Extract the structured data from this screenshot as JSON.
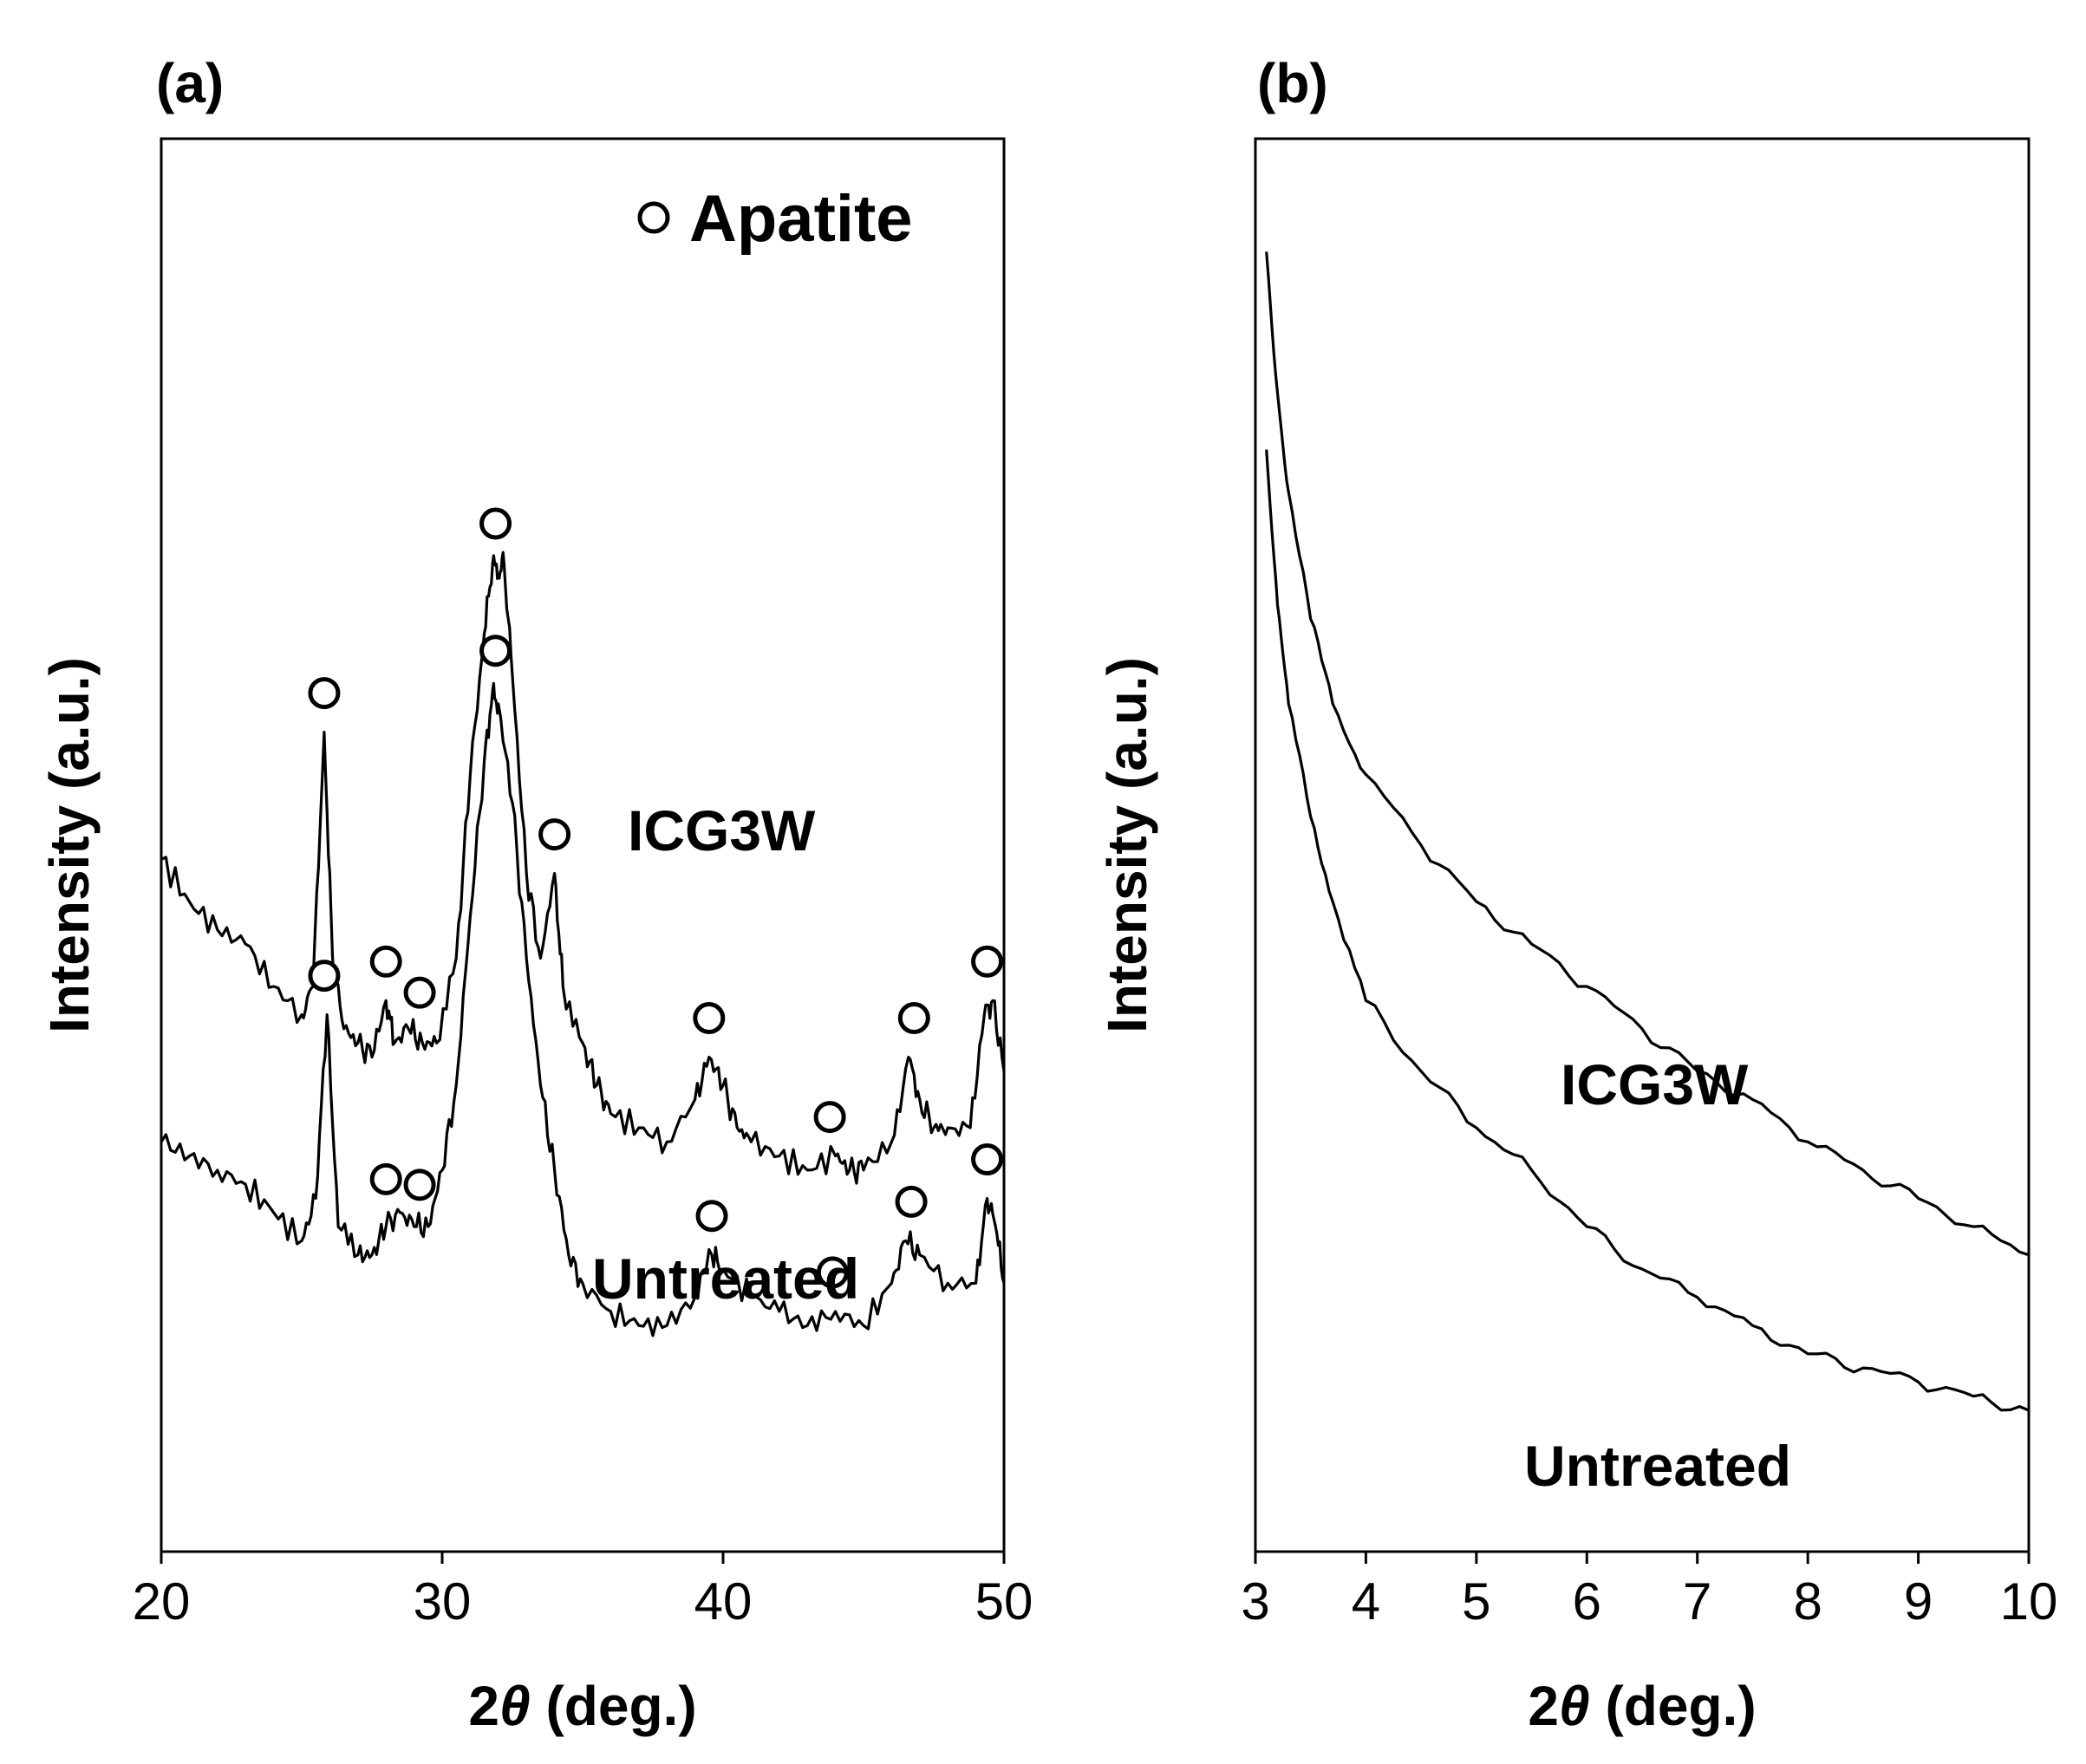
{
  "chart_data": [
    {
      "panel": "(a)",
      "type": "line",
      "xlabel_main": "2",
      "xlabel_theta": "θ",
      "xlabel_rest": " (deg.)",
      "ylabel": "Intensity (a.u.)",
      "xlim": [
        20,
        50
      ],
      "xticks": [
        "20",
        "30",
        "40",
        "50"
      ],
      "legend": {
        "symbol": "open-circle",
        "label": "Apatite",
        "position": "top-right"
      },
      "series": [
        {
          "name": "ICG3W",
          "points": [
            [
              20,
              0.49
            ],
            [
              21,
              0.46
            ],
            [
              22,
              0.44
            ],
            [
              23,
              0.43
            ],
            [
              24,
              0.4
            ],
            [
              25,
              0.38
            ],
            [
              25.4,
              0.4
            ],
            [
              25.8,
              0.58
            ],
            [
              26.1,
              0.42
            ],
            [
              26.5,
              0.37
            ],
            [
              27,
              0.36
            ],
            [
              27.5,
              0.35
            ],
            [
              28.0,
              0.39
            ],
            [
              28.3,
              0.36
            ],
            [
              28.8,
              0.37
            ],
            [
              29.3,
              0.36
            ],
            [
              29.8,
              0.36
            ],
            [
              30.5,
              0.42
            ],
            [
              31.0,
              0.55
            ],
            [
              31.5,
              0.65
            ],
            [
              31.8,
              0.7
            ],
            [
              32.0,
              0.69
            ],
            [
              32.2,
              0.7
            ],
            [
              32.5,
              0.62
            ],
            [
              33.0,
              0.48
            ],
            [
              33.5,
              0.42
            ],
            [
              34.0,
              0.48
            ],
            [
              34.3,
              0.4
            ],
            [
              35,
              0.36
            ],
            [
              35.5,
              0.33
            ],
            [
              36,
              0.31
            ],
            [
              37,
              0.3
            ],
            [
              38,
              0.29
            ],
            [
              39,
              0.32
            ],
            [
              39.5,
              0.35
            ],
            [
              40,
              0.33
            ],
            [
              40.5,
              0.3
            ],
            [
              41,
              0.29
            ],
            [
              42,
              0.28
            ],
            [
              43,
              0.27
            ],
            [
              44,
              0.28
            ],
            [
              44.5,
              0.27
            ],
            [
              45,
              0.27
            ],
            [
              46,
              0.29
            ],
            [
              46.6,
              0.35
            ],
            [
              47,
              0.32
            ],
            [
              47.5,
              0.3
            ],
            [
              48,
              0.3
            ],
            [
              48.8,
              0.3
            ],
            [
              49.3,
              0.38
            ],
            [
              49.6,
              0.39
            ],
            [
              50,
              0.34
            ]
          ],
          "markers_x": [
            25.8,
            28.0,
            29.2,
            31.9,
            34.0,
            39.5,
            43.8,
            46.8,
            49.4
          ]
        },
        {
          "name": "Untreated",
          "points": [
            [
              20,
              0.29
            ],
            [
              21,
              0.28
            ],
            [
              22,
              0.27
            ],
            [
              23,
              0.26
            ],
            [
              24,
              0.24
            ],
            [
              25,
              0.22
            ],
            [
              25.5,
              0.25
            ],
            [
              25.9,
              0.38
            ],
            [
              26.3,
              0.23
            ],
            [
              27,
              0.21
            ],
            [
              27.5,
              0.21
            ],
            [
              28,
              0.23
            ],
            [
              28.5,
              0.24
            ],
            [
              29,
              0.23
            ],
            [
              29.5,
              0.23
            ],
            [
              30,
              0.27
            ],
            [
              30.5,
              0.33
            ],
            [
              31.0,
              0.45
            ],
            [
              31.5,
              0.56
            ],
            [
              31.8,
              0.61
            ],
            [
              32.0,
              0.6
            ],
            [
              32.5,
              0.53
            ],
            [
              33.0,
              0.42
            ],
            [
              33.5,
              0.33
            ],
            [
              34,
              0.27
            ],
            [
              34.5,
              0.21
            ],
            [
              35,
              0.19
            ],
            [
              36,
              0.17
            ],
            [
              37,
              0.16
            ],
            [
              38,
              0.16
            ],
            [
              39,
              0.18
            ],
            [
              39.6,
              0.21
            ],
            [
              40,
              0.2
            ],
            [
              41,
              0.18
            ],
            [
              42,
              0.17
            ],
            [
              43,
              0.16
            ],
            [
              44,
              0.17
            ],
            [
              45,
              0.16
            ],
            [
              46,
              0.19
            ],
            [
              46.5,
              0.22
            ],
            [
              47,
              0.21
            ],
            [
              48,
              0.19
            ],
            [
              49,
              0.19
            ],
            [
              49.4,
              0.25
            ],
            [
              49.7,
              0.23
            ],
            [
              50,
              0.19
            ]
          ],
          "markers_x": [
            25.8,
            28.0,
            29.2,
            31.9,
            39.6,
            43.9,
            46.7,
            49.4
          ]
        }
      ]
    },
    {
      "panel": "(b)",
      "type": "line",
      "xlabel_main": "2",
      "xlabel_theta": "θ",
      "xlabel_rest": " (deg.)",
      "ylabel": "Intensity (a.u.)",
      "xlim": [
        3,
        10
      ],
      "xticks": [
        "3",
        "4",
        "5",
        "6",
        "7",
        "8",
        "9",
        "10"
      ],
      "series": [
        {
          "name": "ICG3W",
          "points": [
            [
              3.1,
              0.92
            ],
            [
              3.2,
              0.82
            ],
            [
              3.3,
              0.75
            ],
            [
              3.5,
              0.66
            ],
            [
              3.7,
              0.6
            ],
            [
              4.0,
              0.55
            ],
            [
              4.5,
              0.5
            ],
            [
              5.0,
              0.46
            ],
            [
              5.5,
              0.43
            ],
            [
              6.0,
              0.4
            ],
            [
              6.5,
              0.37
            ],
            [
              7.0,
              0.34
            ],
            [
              7.5,
              0.32
            ],
            [
              8.0,
              0.29
            ],
            [
              8.5,
              0.27
            ],
            [
              9.0,
              0.25
            ],
            [
              9.5,
              0.23
            ],
            [
              10.0,
              0.21
            ]
          ]
        },
        {
          "name": "Untreated",
          "points": [
            [
              3.1,
              0.78
            ],
            [
              3.2,
              0.67
            ],
            [
              3.3,
              0.6
            ],
            [
              3.5,
              0.52
            ],
            [
              3.7,
              0.46
            ],
            [
              4.0,
              0.39
            ],
            [
              4.5,
              0.34
            ],
            [
              5.0,
              0.3
            ],
            [
              5.5,
              0.27
            ],
            [
              6.0,
              0.23
            ],
            [
              6.5,
              0.2
            ],
            [
              7.0,
              0.18
            ],
            [
              7.5,
              0.16
            ],
            [
              8.0,
              0.14
            ],
            [
              8.5,
              0.13
            ],
            [
              9.0,
              0.12
            ],
            [
              9.5,
              0.11
            ],
            [
              10.0,
              0.1
            ]
          ]
        }
      ]
    }
  ]
}
